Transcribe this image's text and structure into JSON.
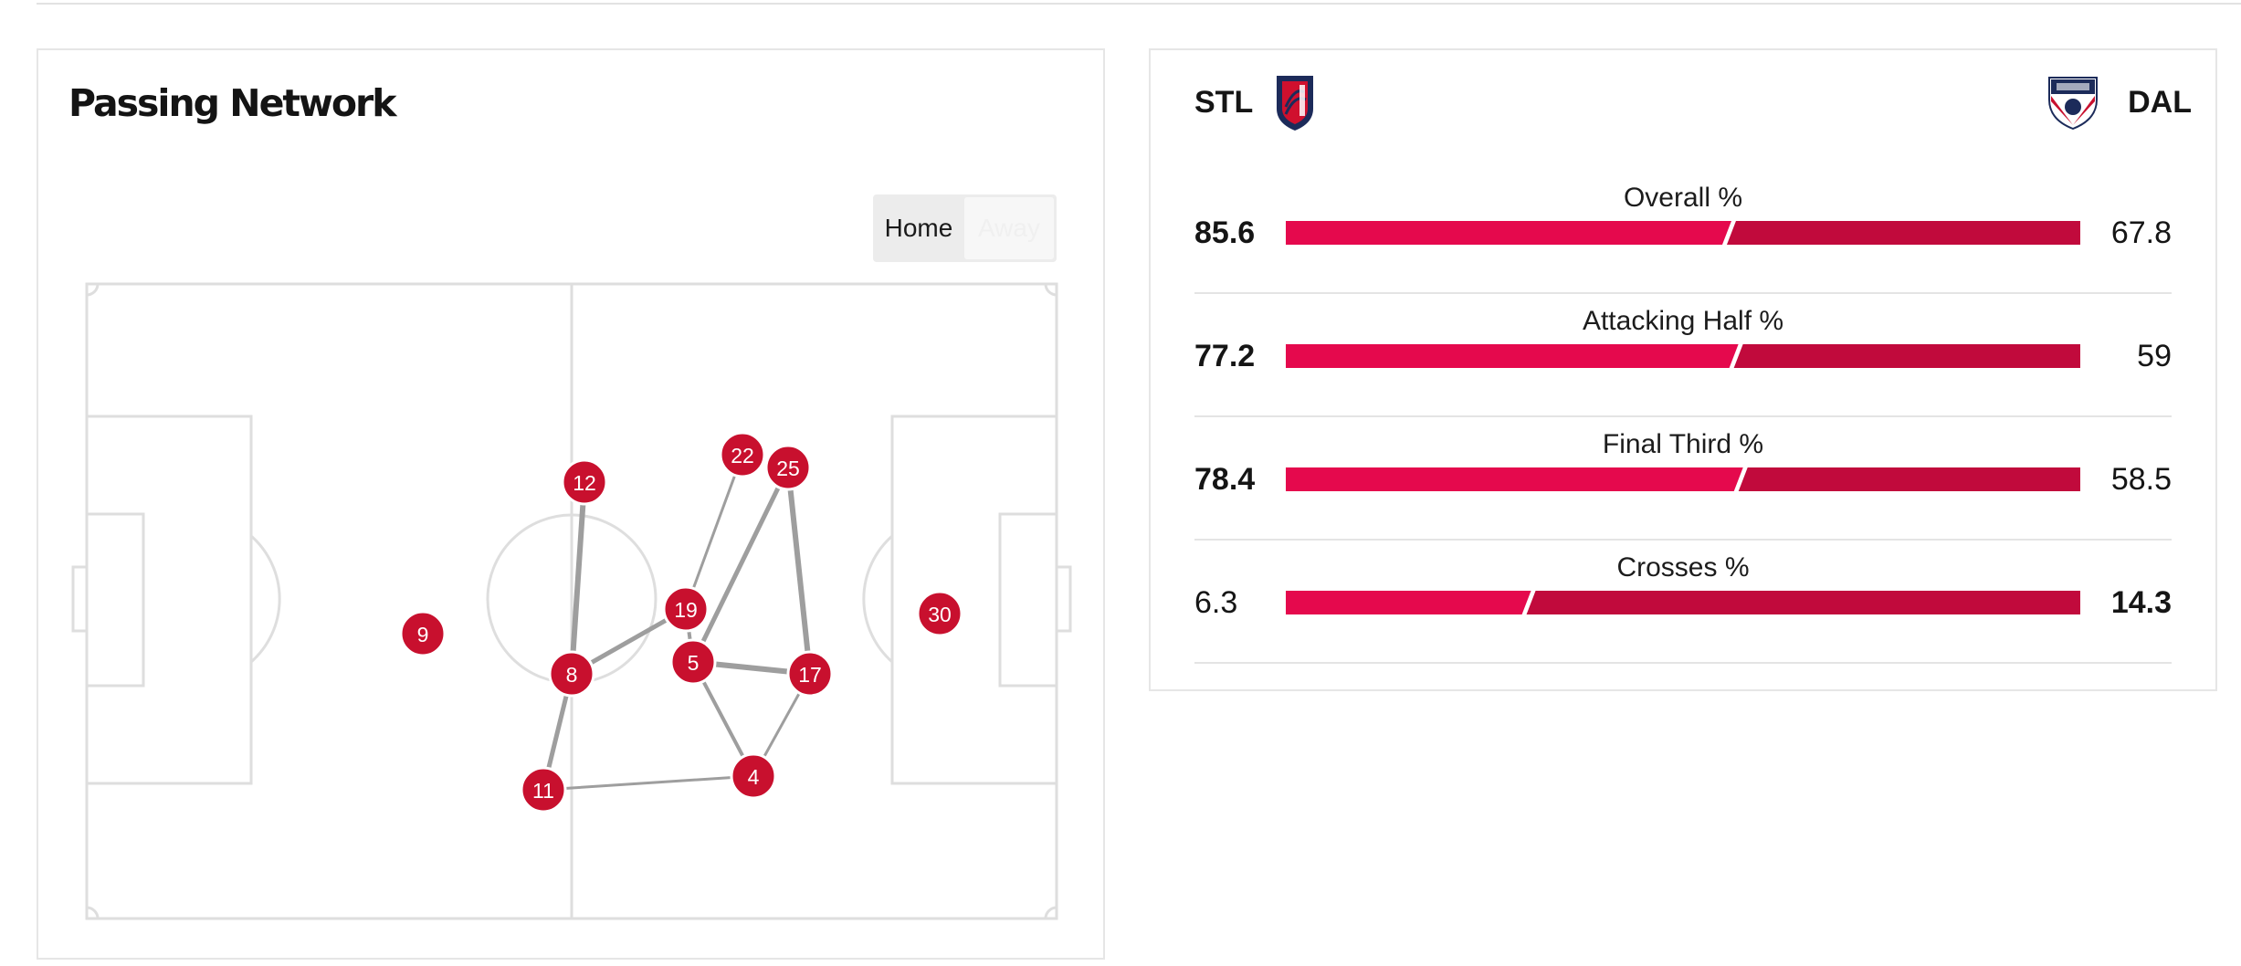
{
  "passing_network": {
    "title": "Passing Network",
    "toggle": {
      "home_label": "Home",
      "away_label": "Away",
      "selected": "Home"
    },
    "node_color": "#c8102e",
    "players": [
      {
        "number": "12"
      },
      {
        "number": "22"
      },
      {
        "number": "25"
      },
      {
        "number": "19"
      },
      {
        "number": "9"
      },
      {
        "number": "8"
      },
      {
        "number": "5"
      },
      {
        "number": "17"
      },
      {
        "number": "30"
      },
      {
        "number": "11"
      },
      {
        "number": "4"
      }
    ],
    "links": [
      [
        "12",
        "8"
      ],
      [
        "22",
        "19"
      ],
      [
        "25",
        "5"
      ],
      [
        "25",
        "17"
      ],
      [
        "19",
        "8"
      ],
      [
        "19",
        "5"
      ],
      [
        "5",
        "17"
      ],
      [
        "5",
        "4"
      ],
      [
        "17",
        "4"
      ],
      [
        "8",
        "11"
      ],
      [
        "11",
        "4"
      ]
    ]
  },
  "match_stats": {
    "home_team": {
      "abbr": "STL"
    },
    "away_team": {
      "abbr": "DAL"
    },
    "colors": {
      "home": "#e5094d",
      "away": "#c10a3c"
    },
    "rows": [
      {
        "label": "Overall %",
        "home": "85.6",
        "away": "67.8",
        "home_value": 85.6,
        "away_value": 67.8,
        "leader": "home"
      },
      {
        "label": "Attacking Half %",
        "home": "77.2",
        "away": "59",
        "home_value": 77.2,
        "away_value": 59,
        "leader": "home"
      },
      {
        "label": "Final Third %",
        "home": "78.4",
        "away": "58.5",
        "home_value": 78.4,
        "away_value": 58.5,
        "leader": "home"
      },
      {
        "label": "Crosses %",
        "home": "6.3",
        "away": "14.3",
        "home_value": 6.3,
        "away_value": 14.3,
        "leader": "away"
      }
    ]
  }
}
